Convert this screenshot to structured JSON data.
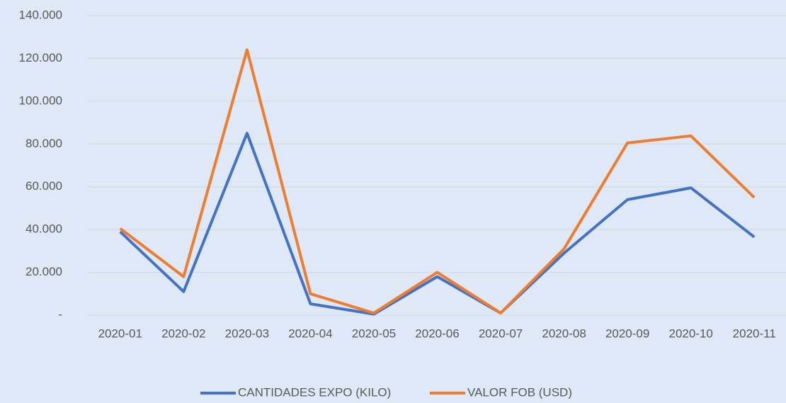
{
  "chart_data": {
    "type": "line",
    "categories": [
      "2020-01",
      "2020-02",
      "2020-03",
      "2020-04",
      "2020-05",
      "2020-06",
      "2020-07",
      "2020-08",
      "2020-09",
      "2020-10",
      "2020-11"
    ],
    "series": [
      {
        "name": "CANTIDADES EXPO (KILO)",
        "color": "#4472c4",
        "values": [
          39000,
          11000,
          85000,
          5300,
          500,
          18000,
          1000,
          29000,
          54000,
          59500,
          36500
        ]
      },
      {
        "name": "VALOR FOB (USD)",
        "color": "#ed7d31",
        "values": [
          40500,
          18000,
          124000,
          10000,
          1000,
          20000,
          1000,
          31000,
          80500,
          83800,
          55000
        ]
      }
    ],
    "ylim": [
      0,
      140000
    ],
    "yticks": [
      {
        "value": 0,
        "label": "-"
      },
      {
        "value": 20000,
        "label": "20.000"
      },
      {
        "value": 40000,
        "label": "40.000"
      },
      {
        "value": 60000,
        "label": "60.000"
      },
      {
        "value": 80000,
        "label": "80.000"
      },
      {
        "value": 100000,
        "label": "100.000"
      },
      {
        "value": 120000,
        "label": "120.000"
      },
      {
        "value": 140000,
        "label": "140.000"
      }
    ],
    "grid": true,
    "legend": "bottom"
  }
}
